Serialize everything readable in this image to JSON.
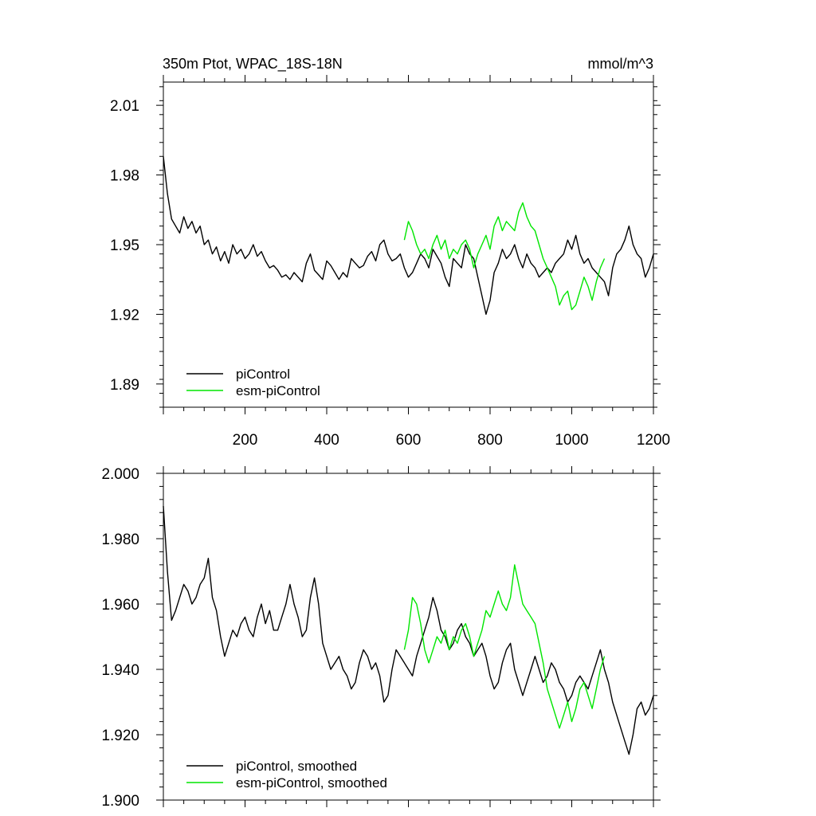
{
  "colors": {
    "piControl": "#000000",
    "esm": "#00e600",
    "axis": "#000000"
  },
  "chart_data": [
    {
      "type": "line",
      "title": "350m Ptot, WPAC_18S-18N",
      "units": "mmol/m^3",
      "xlim": [
        0,
        1200
      ],
      "ylim": [
        1.88,
        2.02
      ],
      "xticks": [
        200,
        400,
        600,
        800,
        1000,
        1200
      ],
      "xtick_labels": [
        "200",
        "400",
        "600",
        "800",
        "1000",
        "1200"
      ],
      "yticks": [
        1.89,
        1.92,
        1.95,
        1.98,
        2.01
      ],
      "ytick_labels": [
        "1.89",
        "1.92",
        "1.95",
        "1.98",
        "2.01"
      ],
      "legend_position": "bottom-left",
      "series": [
        {
          "name": "piControl",
          "color_key": "piControl",
          "x_start": 0,
          "x_step": 10,
          "values": [
            1.988,
            1.972,
            1.961,
            1.958,
            1.955,
            1.962,
            1.957,
            1.96,
            1.955,
            1.958,
            1.95,
            1.952,
            1.946,
            1.949,
            1.943,
            1.947,
            1.942,
            1.95,
            1.946,
            1.948,
            1.944,
            1.946,
            1.95,
            1.945,
            1.947,
            1.943,
            1.94,
            1.941,
            1.939,
            1.936,
            1.937,
            1.935,
            1.938,
            1.936,
            1.934,
            1.942,
            1.946,
            1.939,
            1.937,
            1.935,
            1.943,
            1.941,
            1.938,
            1.935,
            1.938,
            1.936,
            1.944,
            1.942,
            1.94,
            1.941,
            1.945,
            1.947,
            1.943,
            1.95,
            1.952,
            1.946,
            1.943,
            1.944,
            1.946,
            1.94,
            1.936,
            1.938,
            1.942,
            1.946,
            1.944,
            1.94,
            1.948,
            1.945,
            1.942,
            1.936,
            1.932,
            1.944,
            1.942,
            1.94,
            1.95,
            1.946,
            1.944,
            1.936,
            1.928,
            1.92,
            1.926,
            1.938,
            1.942,
            1.948,
            1.944,
            1.946,
            1.95,
            1.944,
            1.94,
            1.946,
            1.942,
            1.94,
            1.936,
            1.938,
            1.94,
            1.938,
            1.942,
            1.944,
            1.946,
            1.952,
            1.948,
            1.954,
            1.946,
            1.942,
            1.944,
            1.94,
            1.938,
            1.936,
            1.934,
            1.928,
            1.94,
            1.946,
            1.948,
            1.952,
            1.958,
            1.95,
            1.946,
            1.944,
            1.936,
            1.94,
            1.946
          ]
        },
        {
          "name": "esm-piControl",
          "color_key": "esm",
          "x_start": 590,
          "x_step": 10,
          "values": [
            1.952,
            1.96,
            1.956,
            1.95,
            1.946,
            1.948,
            1.944,
            1.95,
            1.954,
            1.948,
            1.952,
            1.944,
            1.948,
            1.946,
            1.95,
            1.952,
            1.948,
            1.94,
            1.946,
            1.95,
            1.954,
            1.948,
            1.958,
            1.962,
            1.956,
            1.96,
            1.958,
            1.956,
            1.964,
            1.968,
            1.962,
            1.958,
            1.956,
            1.95,
            1.944,
            1.94,
            1.936,
            1.932,
            1.924,
            1.928,
            1.93,
            1.922,
            1.924,
            1.93,
            1.936,
            1.932,
            1.926,
            1.934,
            1.94,
            1.944
          ]
        }
      ]
    },
    {
      "type": "line",
      "title": "",
      "xlim": [
        0,
        1200
      ],
      "ylim": [
        1.9,
        2.0
      ],
      "xticks": [
        200,
        400,
        600,
        800,
        1000,
        1200
      ],
      "yticks": [
        1.9,
        1.92,
        1.94,
        1.96,
        1.98,
        2.0
      ],
      "ytick_labels": [
        "1.900",
        "1.920",
        "1.940",
        "1.960",
        "1.980",
        "2.000"
      ],
      "legend_position": "bottom-left",
      "series": [
        {
          "name": "piControl, smoothed",
          "color_key": "piControl",
          "x_start": 0,
          "x_step": 10,
          "values": [
            1.99,
            1.97,
            1.955,
            1.958,
            1.962,
            1.966,
            1.964,
            1.96,
            1.962,
            1.966,
            1.968,
            1.974,
            1.962,
            1.958,
            1.95,
            1.944,
            1.948,
            1.952,
            1.95,
            1.954,
            1.956,
            1.952,
            1.95,
            1.956,
            1.96,
            1.954,
            1.958,
            1.952,
            1.952,
            1.956,
            1.96,
            1.966,
            1.96,
            1.956,
            1.95,
            1.952,
            1.962,
            1.968,
            1.96,
            1.948,
            1.944,
            1.94,
            1.942,
            1.944,
            1.94,
            1.938,
            1.934,
            1.936,
            1.942,
            1.946,
            1.944,
            1.94,
            1.942,
            1.938,
            1.93,
            1.932,
            1.94,
            1.946,
            1.944,
            1.942,
            1.94,
            1.938,
            1.944,
            1.948,
            1.952,
            1.956,
            1.962,
            1.958,
            1.952,
            1.95,
            1.946,
            1.948,
            1.952,
            1.954,
            1.95,
            1.948,
            1.944,
            1.946,
            1.948,
            1.944,
            1.938,
            1.934,
            1.936,
            1.942,
            1.946,
            1.948,
            1.94,
            1.936,
            1.932,
            1.936,
            1.94,
            1.944,
            1.94,
            1.936,
            1.938,
            1.942,
            1.94,
            1.936,
            1.934,
            1.93,
            1.932,
            1.936,
            1.938,
            1.936,
            1.934,
            1.938,
            1.942,
            1.946,
            1.94,
            1.936,
            1.93,
            1.926,
            1.922,
            1.918,
            1.914,
            1.92,
            1.928,
            1.93,
            1.926,
            1.928,
            1.932
          ]
        },
        {
          "name": "esm-piControl, smoothed",
          "color_key": "esm",
          "x_start": 590,
          "x_step": 10,
          "values": [
            1.946,
            1.952,
            1.962,
            1.96,
            1.954,
            1.946,
            1.942,
            1.946,
            1.95,
            1.948,
            1.952,
            1.946,
            1.95,
            1.948,
            1.952,
            1.954,
            1.95,
            1.944,
            1.948,
            1.952,
            1.958,
            1.956,
            1.96,
            1.964,
            1.96,
            1.958,
            1.962,
            1.972,
            1.966,
            1.96,
            1.958,
            1.956,
            1.954,
            1.948,
            1.942,
            1.934,
            1.93,
            1.926,
            1.922,
            1.926,
            1.93,
            1.924,
            1.928,
            1.934,
            1.936,
            1.932,
            1.928,
            1.934,
            1.94,
            1.944
          ]
        }
      ]
    }
  ]
}
